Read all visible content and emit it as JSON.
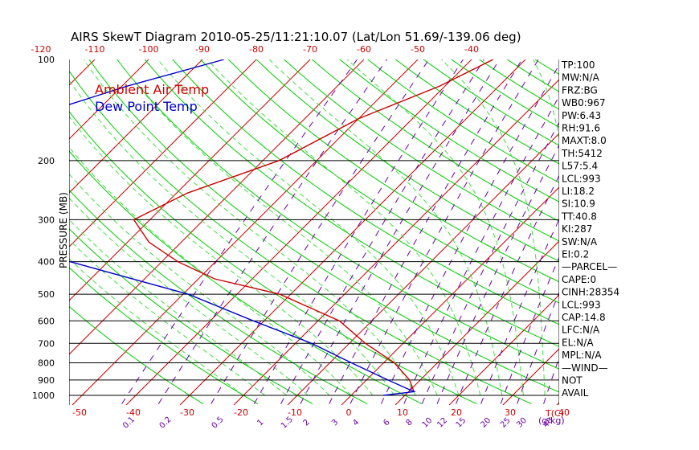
{
  "title": "AIRS SkewT Diagram 2010-05-25/11:21:10.07 (Lat/Lon 51.69/-139.06 deg)",
  "chart_data": {
    "type": "line",
    "title": "AIRS SkewT Diagram 2010-05-25/11:21:10.07 (Lat/Lon 51.69/-139.06 deg)",
    "ylabel": "PRESSURE (MB)",
    "xlabel": "T(C)",
    "mixing_ratio_unit": "(g/kg)",
    "y_scale": "log",
    "ylim": [
      1000,
      100
    ],
    "pressure_ticks": [
      100,
      200,
      300,
      400,
      500,
      600,
      700,
      800,
      900,
      1000
    ],
    "top_temperature_ticks": [
      -120,
      -110,
      -100,
      -90,
      -80,
      -70,
      -60,
      -50,
      -40
    ],
    "bottom_temperature_ticks": [
      -50,
      -40,
      -30,
      -20,
      -10,
      0,
      10,
      20,
      30,
      40
    ],
    "mixing_ratio_ticks": [
      "0.1",
      "0.2",
      "0.5",
      "1",
      "1.5",
      "2",
      "3",
      "4",
      "6",
      "8",
      "10",
      "12",
      "15",
      "20",
      "25",
      "30",
      "40"
    ],
    "legend": [
      "Ambient Air Temp",
      "Dew Point Temp"
    ],
    "series": [
      {
        "name": "Ambient Air Temp",
        "color": "#cc0000",
        "points": [
          {
            "p": 100,
            "t": -36
          },
          {
            "p": 120,
            "t": -41
          },
          {
            "p": 150,
            "t": -50
          },
          {
            "p": 200,
            "t": -57
          },
          {
            "p": 250,
            "t": -68
          },
          {
            "p": 300,
            "t": -73
          },
          {
            "p": 350,
            "t": -66
          },
          {
            "p": 400,
            "t": -57
          },
          {
            "p": 450,
            "t": -47
          },
          {
            "p": 500,
            "t": -32
          },
          {
            "p": 600,
            "t": -16
          },
          {
            "p": 700,
            "t": -7
          },
          {
            "p": 800,
            "t": 2
          },
          {
            "p": 900,
            "t": 8
          },
          {
            "p": 975,
            "t": 11
          }
        ]
      },
      {
        "name": "Dew Point Temp",
        "color": "#0000cc",
        "points": [
          {
            "p": 100,
            "t": -86
          },
          {
            "p": 120,
            "t": -99
          },
          {
            "p": 150,
            "t": -112
          },
          {
            "p": 200,
            "t": -126
          },
          {
            "p": 250,
            "t": -118
          },
          {
            "p": 300,
            "t": -104
          },
          {
            "p": 400,
            "t": -77
          },
          {
            "p": 500,
            "t": -49
          },
          {
            "p": 600,
            "t": -32
          },
          {
            "p": 700,
            "t": -17
          },
          {
            "p": 800,
            "t": -6
          },
          {
            "p": 900,
            "t": 4
          },
          {
            "p": 975,
            "t": 11
          },
          {
            "p": 1000,
            "t": 6
          }
        ]
      }
    ]
  },
  "indices": [
    "TP:100",
    "MW:N/A",
    "FRZ:BG",
    "WB0:967",
    "PW:6.43",
    "RH:91.6",
    "MAXT:8.0",
    "TH:5412",
    "L57:5.4",
    "LCL:993",
    "LI:18.2",
    "SI:10.9",
    "TT:40.8",
    "KI:287",
    "SW:N/A",
    "EI:0.2",
    "—PARCEL—",
    "CAPE:0",
    "CINH:28354",
    "LCL:993",
    "CAP:14.8",
    "LFC:N/A",
    "EL:N/A",
    "MPL:N/A",
    "—WIND—",
    "NOT",
    "AVAIL"
  ],
  "colors": {
    "isotherm": "#cc0000",
    "dry_adiabat": "#00cc00",
    "moist_adiabat": "#44dd44",
    "mixing_ratio": "#6a00a8",
    "temperature": "#cc0000",
    "dewpoint": "#0000cc",
    "isobar": "#000000"
  }
}
